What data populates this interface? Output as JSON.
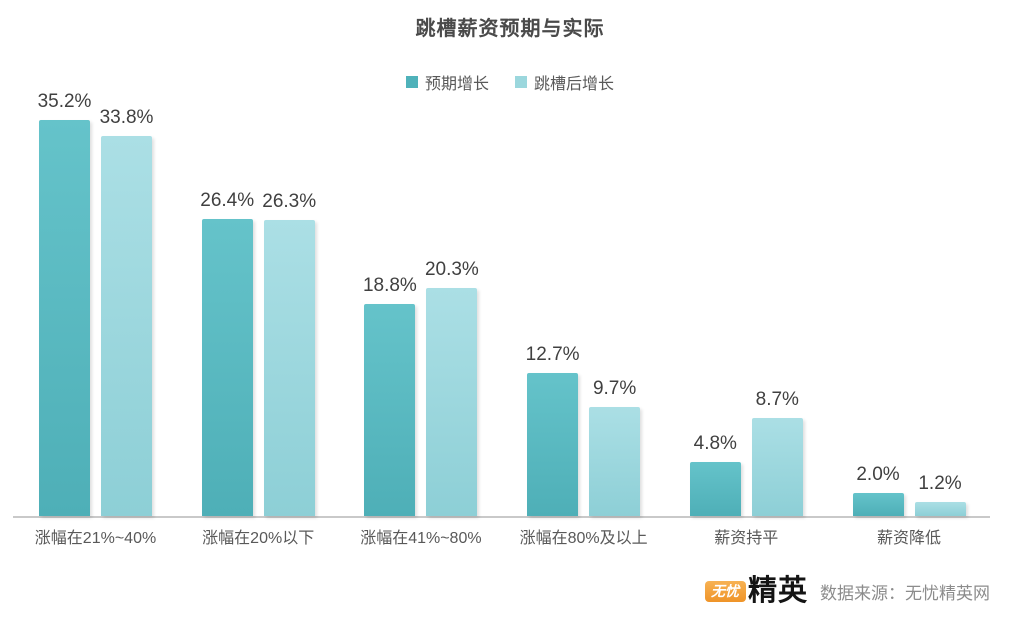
{
  "title": "跳槽薪资预期与实际",
  "chart_data": {
    "type": "bar",
    "title": "跳槽薪资预期与实际",
    "categories": [
      "涨幅在21%~40%",
      "涨幅在20%以下",
      "涨幅在41%~80%",
      "涨幅在80%及以上",
      "薪资持平",
      "薪资降低"
    ],
    "series": [
      {
        "name": "预期增长",
        "values": [
          35.2,
          26.4,
          18.8,
          12.7,
          4.8,
          2.0
        ],
        "color_top": "#65C3CA",
        "color_bottom": "#4EAFB7",
        "legend_color": "#4FB2BA"
      },
      {
        "name": "跳槽后增长",
        "values": [
          33.8,
          26.3,
          20.3,
          9.7,
          8.7,
          1.2
        ],
        "color_top": "#ABDFE5",
        "color_bottom": "#8DCFD6",
        "legend_color": "#9BD7DD"
      }
    ],
    "value_suffix": "%",
    "value_decimals": 1,
    "xlabel": "",
    "ylabel": "",
    "ylim": [
      0,
      37
    ],
    "grid": false,
    "legend_position": "top",
    "axis_line_color": "#C9C9C9"
  },
  "footer": {
    "logo_badge": "无忧",
    "logo_text": "精英",
    "source": "数据来源：无忧精英网",
    "badge_color": "#F29B38"
  }
}
